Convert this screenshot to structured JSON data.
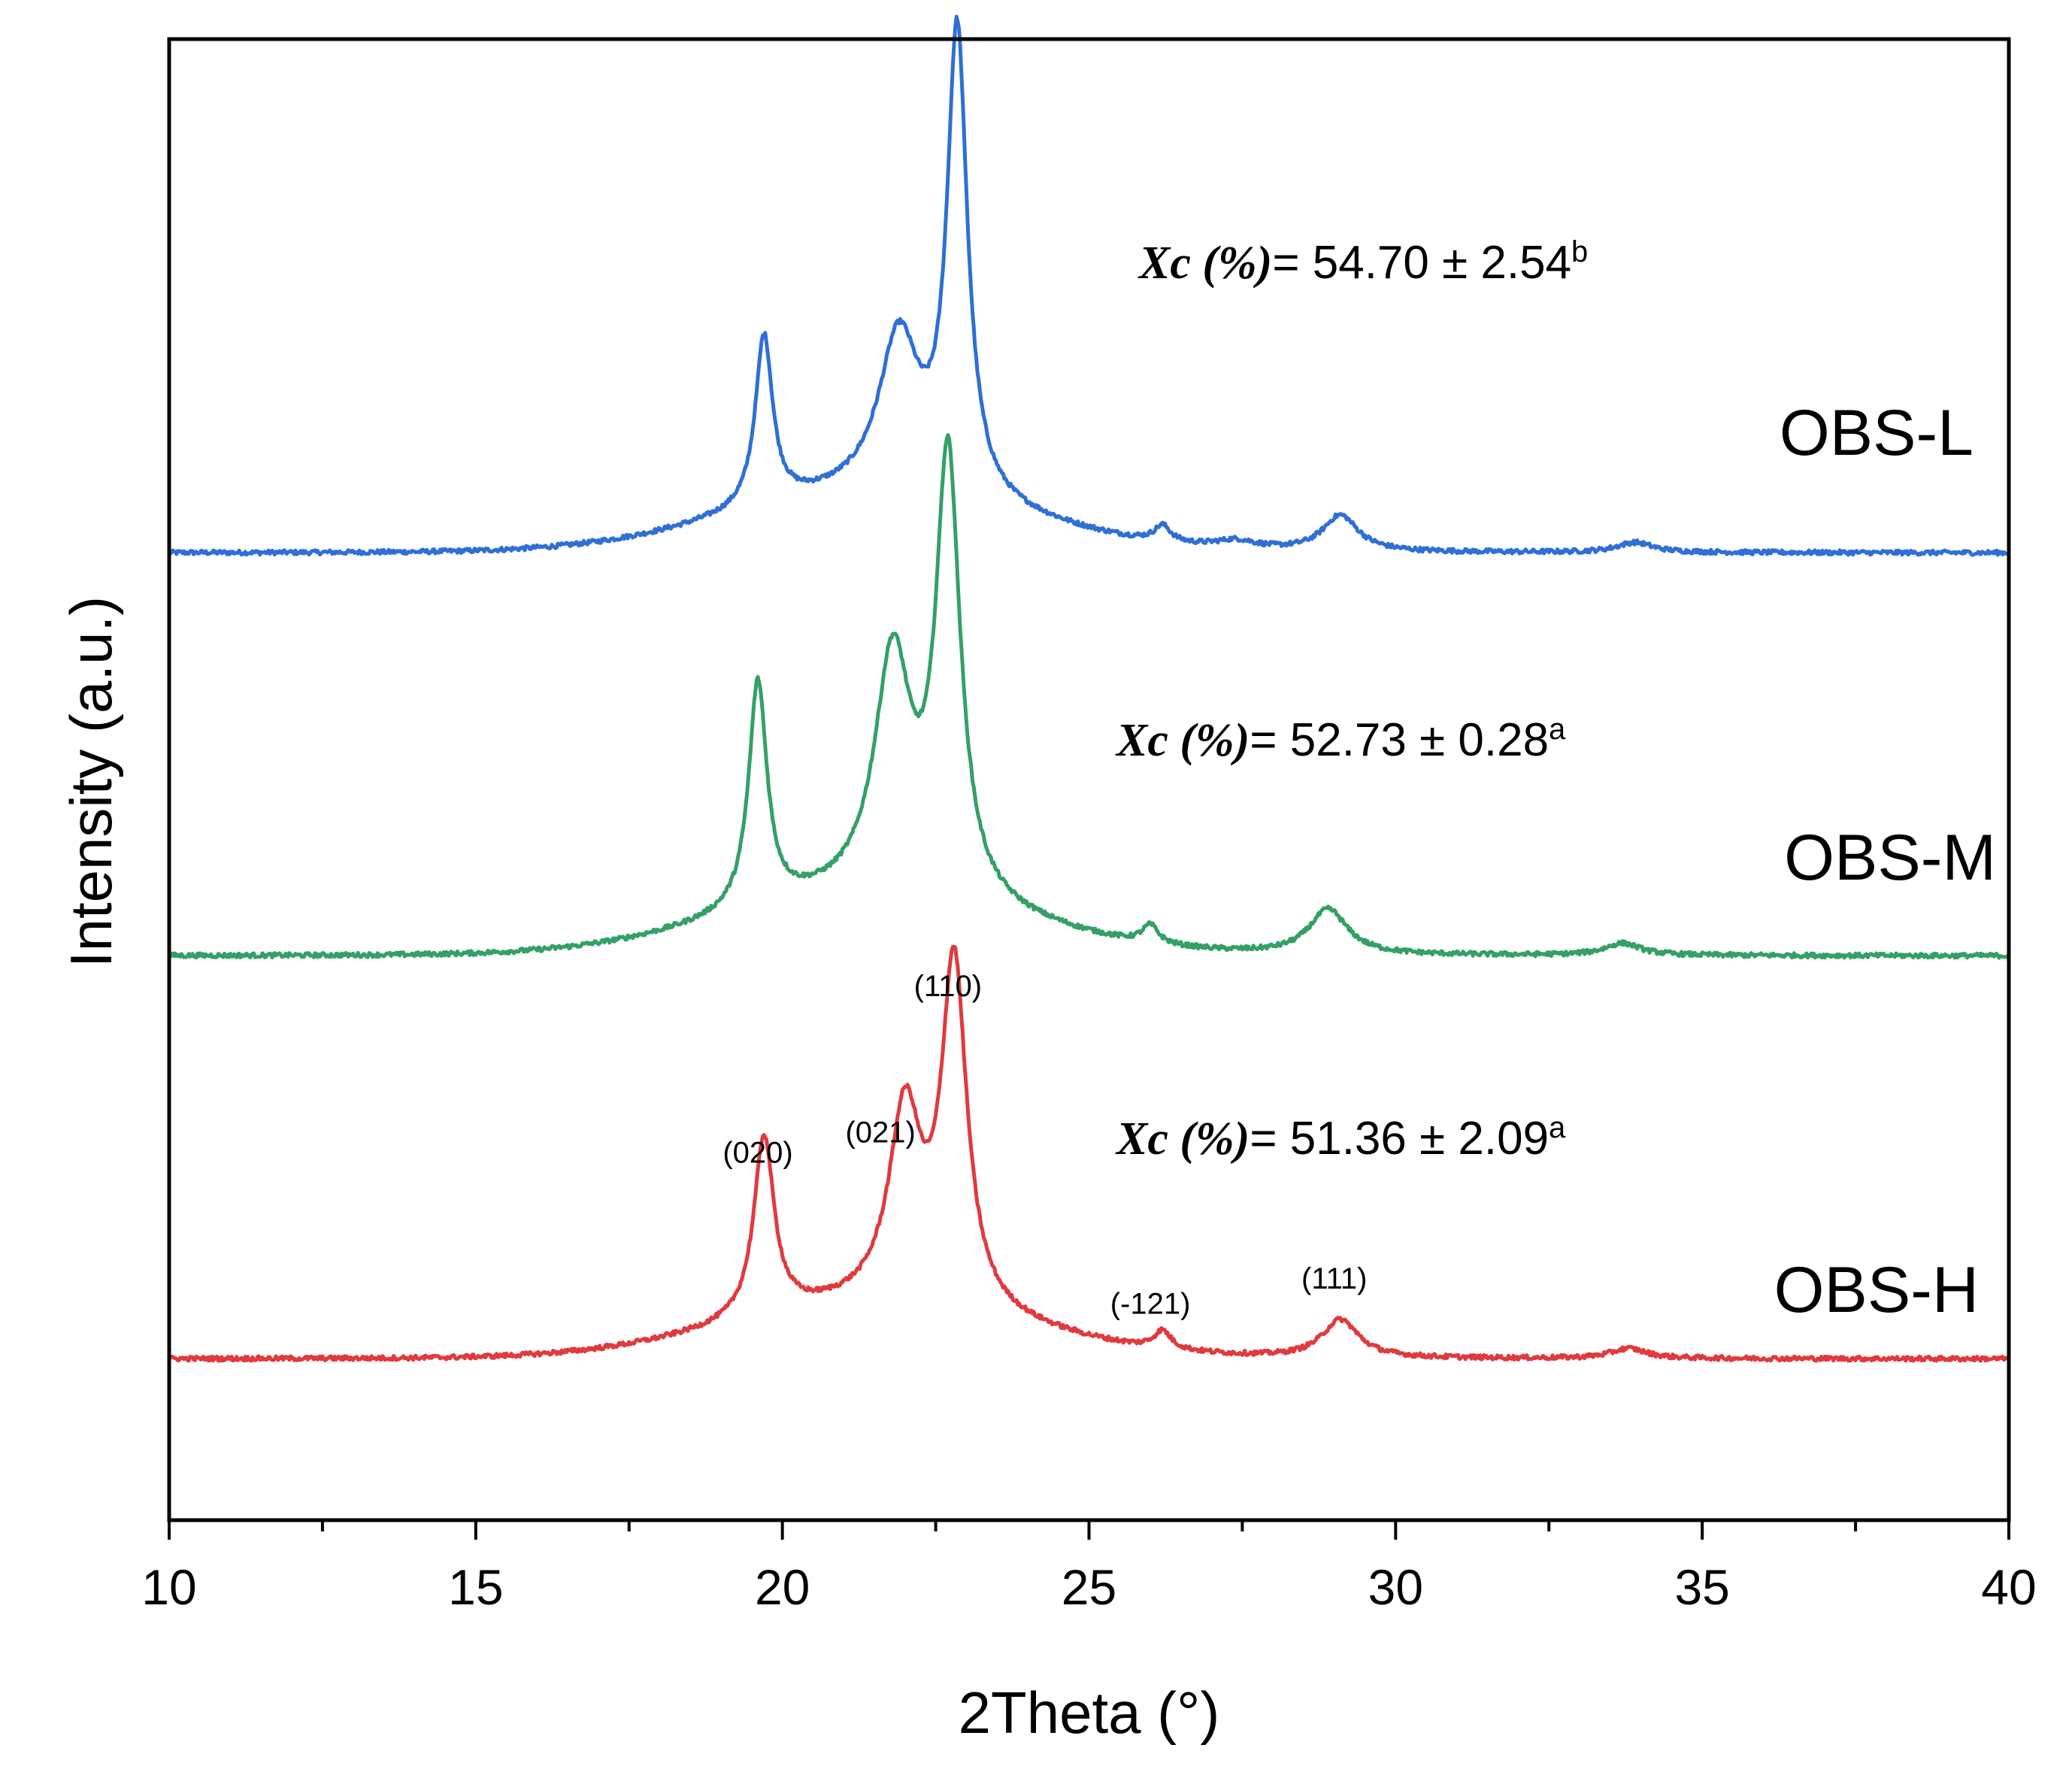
{
  "chart_data": {
    "type": "line",
    "title": "",
    "xlabel": "2Theta (°)",
    "ylabel": "Intensity (a.u.)",
    "xlim": [
      10,
      40
    ],
    "xticks": [
      "10",
      "15",
      "20",
      "25",
      "30",
      "35",
      "40"
    ],
    "yticks": "none",
    "grid": false,
    "series": [
      {
        "name": "OBS-L",
        "color": "#2f6fd6",
        "baseline": 8,
        "peaks": [
          {
            "center": 19.7,
            "height": 1.7,
            "width": 0.17
          },
          {
            "center": 21.9,
            "height": 1.55,
            "width": 0.4
          },
          {
            "center": 22.85,
            "height": 4.6,
            "width": 0.2
          },
          {
            "center": 26.2,
            "height": 0.16,
            "width": 0.16
          },
          {
            "center": 27.4,
            "height": 0.08,
            "width": 0.4
          },
          {
            "center": 29.1,
            "height": 0.36,
            "width": 0.35
          },
          {
            "center": 33.9,
            "height": 0.1,
            "width": 0.35
          }
        ],
        "amorphous": {
          "center": 21.5,
          "height": 0.55,
          "width": 2.4
        },
        "xc_label": {
          "prefix": "Xc (%)",
          "text": "= 54.70 ± 2.54",
          "superscript": "b"
        }
      },
      {
        "name": "OBS-M",
        "color": "#34a067",
        "baseline": 4,
        "peaks": [
          {
            "center": 19.6,
            "height": 2.25,
            "width": 0.18
          },
          {
            "center": 21.8,
            "height": 2.35,
            "width": 0.36
          },
          {
            "center": 22.7,
            "height": 4.35,
            "width": 0.24
          },
          {
            "center": 26.0,
            "height": 0.18,
            "width": 0.16
          },
          {
            "center": 28.9,
            "height": 0.45,
            "width": 0.38
          },
          {
            "center": 33.7,
            "height": 0.12,
            "width": 0.35
          }
        ],
        "amorphous": {
          "center": 21.4,
          "height": 0.55,
          "width": 2.4
        },
        "xc_label": {
          "prefix": "Xc (%)",
          "text": "= 52.73 ± 0.28",
          "superscript": "a"
        }
      },
      {
        "name": "OBS-H",
        "color": "#e03a3e",
        "baseline": 0,
        "peaks": [
          {
            "center": 19.7,
            "height": 1.8,
            "width": 0.2
          },
          {
            "center": 22.0,
            "height": 1.9,
            "width": 0.32
          },
          {
            "center": 22.8,
            "height": 3.4,
            "width": 0.25
          },
          {
            "center": 26.2,
            "height": 0.18,
            "width": 0.17
          },
          {
            "center": 29.1,
            "height": 0.38,
            "width": 0.36
          },
          {
            "center": 33.8,
            "height": 0.1,
            "width": 0.35
          }
        ],
        "amorphous": {
          "center": 21.5,
          "height": 0.5,
          "width": 2.4
        },
        "xc_label": {
          "prefix": "Xc (%)",
          "text": "= 51.36 ± 2.09",
          "superscript": "a"
        }
      }
    ],
    "ylim": [
      -1.6,
      13.1
    ],
    "peak_annotations": [
      {
        "label": "(020)",
        "x": 19.6,
        "y": 1.95
      },
      {
        "label": "(021)",
        "x": 21.6,
        "y": 2.15
      },
      {
        "label": "(110)",
        "x": 22.7,
        "y": 3.6
      },
      {
        "label": "(-121)",
        "x": 26.0,
        "y": 0.45
      },
      {
        "label": "(111)",
        "x": 29.0,
        "y": 0.7
      }
    ]
  }
}
